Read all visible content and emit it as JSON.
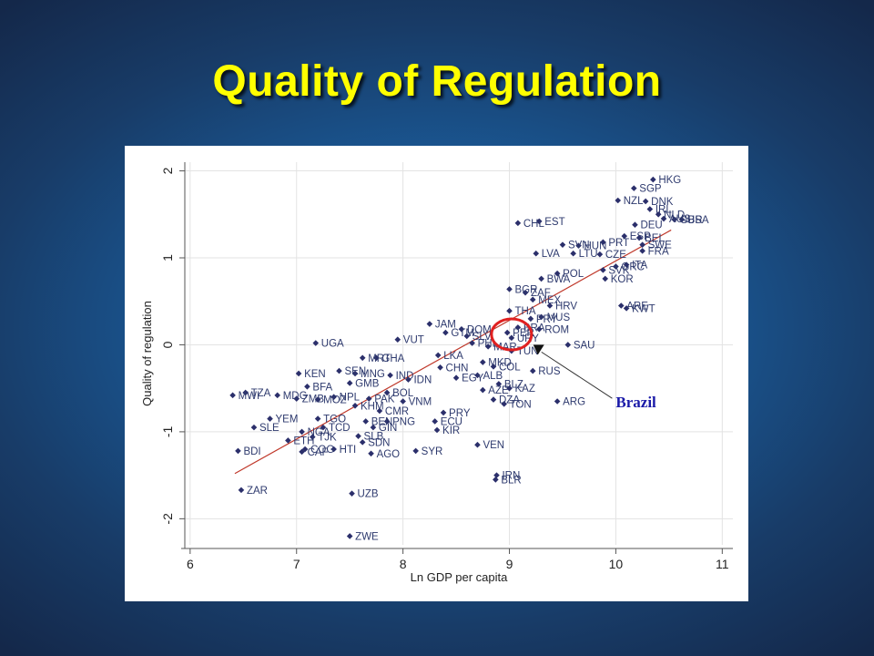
{
  "slide": {
    "title": "Quality of Regulation"
  },
  "chart_data": {
    "type": "scatter",
    "title": "",
    "xlabel": "Ln GDP per capita",
    "ylabel": "Quality of regulation",
    "xlim": [
      5.95,
      11.1
    ],
    "ylim": [
      -2.3,
      2.1
    ],
    "xticks": [
      6,
      7,
      8,
      9,
      10,
      11
    ],
    "yticks": [
      -2,
      -1,
      0,
      1,
      2
    ],
    "grid": true,
    "fit_line": {
      "x": [
        6.42,
        10.52
      ],
      "y": [
        -1.48,
        1.32
      ],
      "color": "#c0392b"
    },
    "point_color": "#2b2f6b",
    "points": [
      {
        "x": 10.35,
        "y": 1.9,
        "label": "HKG"
      },
      {
        "x": 10.17,
        "y": 1.8,
        "label": "SGP"
      },
      {
        "x": 10.02,
        "y": 1.66,
        "label": "NZL"
      },
      {
        "x": 10.28,
        "y": 1.65,
        "label": "DNK"
      },
      {
        "x": 10.32,
        "y": 1.56,
        "label": "IRL"
      },
      {
        "x": 10.4,
        "y": 1.5,
        "label": "NLD"
      },
      {
        "x": 10.55,
        "y": 1.44,
        "label": "GBR"
      },
      {
        "x": 10.62,
        "y": 1.44,
        "label": "USA"
      },
      {
        "x": 10.45,
        "y": 1.45,
        "label": "AUS"
      },
      {
        "x": 9.28,
        "y": 1.42,
        "label": "EST"
      },
      {
        "x": 9.08,
        "y": 1.4,
        "label": "CHL"
      },
      {
        "x": 10.18,
        "y": 1.38,
        "label": "DEU"
      },
      {
        "x": 10.08,
        "y": 1.25,
        "label": "ESP"
      },
      {
        "x": 10.22,
        "y": 1.23,
        "label": "BEL"
      },
      {
        "x": 10.25,
        "y": 1.15,
        "label": "SWE"
      },
      {
        "x": 9.88,
        "y": 1.18,
        "label": "PRT"
      },
      {
        "x": 9.5,
        "y": 1.15,
        "label": "SVN"
      },
      {
        "x": 9.65,
        "y": 1.14,
        "label": "HUN"
      },
      {
        "x": 10.25,
        "y": 1.08,
        "label": "FRA"
      },
      {
        "x": 9.25,
        "y": 1.05,
        "label": "LVA"
      },
      {
        "x": 9.6,
        "y": 1.05,
        "label": "LTU"
      },
      {
        "x": 9.85,
        "y": 1.04,
        "label": "CZE"
      },
      {
        "x": 10.1,
        "y": 0.92,
        "label": "ITA"
      },
      {
        "x": 10.0,
        "y": 0.9,
        "label": "GRC"
      },
      {
        "x": 9.88,
        "y": 0.86,
        "label": "SVK"
      },
      {
        "x": 9.45,
        "y": 0.82,
        "label": "POL"
      },
      {
        "x": 9.3,
        "y": 0.76,
        "label": "BWA"
      },
      {
        "x": 9.9,
        "y": 0.76,
        "label": "KOR"
      },
      {
        "x": 9.0,
        "y": 0.64,
        "label": "BGR"
      },
      {
        "x": 9.15,
        "y": 0.6,
        "label": "ZAF"
      },
      {
        "x": 9.22,
        "y": 0.52,
        "label": "MEX"
      },
      {
        "x": 9.38,
        "y": 0.45,
        "label": "HRV"
      },
      {
        "x": 10.05,
        "y": 0.45,
        "label": "ARE"
      },
      {
        "x": 10.1,
        "y": 0.42,
        "label": "KWT"
      },
      {
        "x": 9.0,
        "y": 0.39,
        "label": "THA"
      },
      {
        "x": 9.3,
        "y": 0.32,
        "label": "MUS"
      },
      {
        "x": 9.2,
        "y": 0.3,
        "label": "PRY"
      },
      {
        "x": 8.25,
        "y": 0.24,
        "label": "JAM"
      },
      {
        "x": 8.55,
        "y": 0.18,
        "label": "DOM"
      },
      {
        "x": 8.4,
        "y": 0.14,
        "label": "GTM"
      },
      {
        "x": 8.6,
        "y": 0.1,
        "label": "SLV"
      },
      {
        "x": 9.08,
        "y": 0.2,
        "label": "BRA"
      },
      {
        "x": 8.98,
        "y": 0.14,
        "label": "PER"
      },
      {
        "x": 9.02,
        "y": 0.08,
        "label": "URY"
      },
      {
        "x": 9.28,
        "y": 0.18,
        "label": "ROM"
      },
      {
        "x": 8.65,
        "y": 0.02,
        "label": "PHL"
      },
      {
        "x": 8.8,
        "y": -0.02,
        "label": "MAR"
      },
      {
        "x": 9.02,
        "y": -0.07,
        "label": "TUN"
      },
      {
        "x": 9.55,
        "y": 0.0,
        "label": "SAU"
      },
      {
        "x": 7.18,
        "y": 0.02,
        "label": "UGA"
      },
      {
        "x": 7.95,
        "y": 0.06,
        "label": "VUT"
      },
      {
        "x": 7.62,
        "y": -0.15,
        "label": "MRT"
      },
      {
        "x": 7.75,
        "y": -0.15,
        "label": "GHA"
      },
      {
        "x": 8.33,
        "y": -0.12,
        "label": "LKA"
      },
      {
        "x": 8.35,
        "y": -0.26,
        "label": "CHN"
      },
      {
        "x": 8.75,
        "y": -0.2,
        "label": "MKD"
      },
      {
        "x": 8.85,
        "y": -0.25,
        "label": "COL"
      },
      {
        "x": 9.22,
        "y": -0.3,
        "label": "RUS"
      },
      {
        "x": 7.02,
        "y": -0.33,
        "label": "KEN"
      },
      {
        "x": 7.4,
        "y": -0.3,
        "label": "SEN"
      },
      {
        "x": 7.55,
        "y": -0.33,
        "label": "MNG"
      },
      {
        "x": 7.1,
        "y": -0.48,
        "label": "BFA"
      },
      {
        "x": 7.5,
        "y": -0.44,
        "label": "GMB"
      },
      {
        "x": 7.88,
        "y": -0.35,
        "label": "IND"
      },
      {
        "x": 8.05,
        "y": -0.4,
        "label": "IDN"
      },
      {
        "x": 8.5,
        "y": -0.38,
        "label": "EGY"
      },
      {
        "x": 8.7,
        "y": -0.35,
        "label": "ALB"
      },
      {
        "x": 8.9,
        "y": -0.45,
        "label": "BLZ"
      },
      {
        "x": 9.0,
        "y": -0.5,
        "label": "KAZ"
      },
      {
        "x": 8.75,
        "y": -0.52,
        "label": "AZE"
      },
      {
        "x": 7.85,
        "y": -0.55,
        "label": "BOL"
      },
      {
        "x": 6.4,
        "y": -0.58,
        "label": "MWI"
      },
      {
        "x": 6.52,
        "y": -0.55,
        "label": "TZA"
      },
      {
        "x": 6.82,
        "y": -0.58,
        "label": "MDG"
      },
      {
        "x": 7.0,
        "y": -0.62,
        "label": "ZMB"
      },
      {
        "x": 7.2,
        "y": -0.63,
        "label": "MOZ"
      },
      {
        "x": 7.35,
        "y": -0.6,
        "label": "NPL"
      },
      {
        "x": 7.68,
        "y": -0.62,
        "label": "PAK"
      },
      {
        "x": 8.0,
        "y": -0.65,
        "label": "VNM"
      },
      {
        "x": 8.85,
        "y": -0.63,
        "label": "DZA"
      },
      {
        "x": 8.95,
        "y": -0.68,
        "label": "TON"
      },
      {
        "x": 9.45,
        "y": -0.65,
        "label": "ARG"
      },
      {
        "x": 7.55,
        "y": -0.7,
        "label": "KHM"
      },
      {
        "x": 7.78,
        "y": -0.76,
        "label": "CMR"
      },
      {
        "x": 8.38,
        "y": -0.78,
        "label": "PRY"
      },
      {
        "x": 7.2,
        "y": -0.85,
        "label": "TGO"
      },
      {
        "x": 6.75,
        "y": -0.85,
        "label": "YEM"
      },
      {
        "x": 7.65,
        "y": -0.88,
        "label": "BEN"
      },
      {
        "x": 7.85,
        "y": -0.88,
        "label": "PNG"
      },
      {
        "x": 8.3,
        "y": -0.88,
        "label": "ECU"
      },
      {
        "x": 7.72,
        "y": -0.95,
        "label": "GIN"
      },
      {
        "x": 6.6,
        "y": -0.95,
        "label": "SLE"
      },
      {
        "x": 8.32,
        "y": -0.98,
        "label": "KIR"
      },
      {
        "x": 7.25,
        "y": -0.95,
        "label": "TCD"
      },
      {
        "x": 7.05,
        "y": -1.0,
        "label": "NGA"
      },
      {
        "x": 7.58,
        "y": -1.05,
        "label": "SLB"
      },
      {
        "x": 7.15,
        "y": -1.06,
        "label": "TJK"
      },
      {
        "x": 6.92,
        "y": -1.1,
        "label": "ETH"
      },
      {
        "x": 7.62,
        "y": -1.12,
        "label": "SDN"
      },
      {
        "x": 8.7,
        "y": -1.15,
        "label": "VEN"
      },
      {
        "x": 7.08,
        "y": -1.2,
        "label": "COG"
      },
      {
        "x": 7.35,
        "y": -1.2,
        "label": "HTI"
      },
      {
        "x": 7.05,
        "y": -1.23,
        "label": "CAF"
      },
      {
        "x": 6.45,
        "y": -1.22,
        "label": "BDI"
      },
      {
        "x": 8.12,
        "y": -1.22,
        "label": "SYR"
      },
      {
        "x": 7.7,
        "y": -1.25,
        "label": "AGO"
      },
      {
        "x": 8.88,
        "y": -1.5,
        "label": "IRN"
      },
      {
        "x": 8.87,
        "y": -1.55,
        "label": "BLR"
      },
      {
        "x": 6.48,
        "y": -1.67,
        "label": "ZAR"
      },
      {
        "x": 7.52,
        "y": -1.71,
        "label": "UZB"
      },
      {
        "x": 7.5,
        "y": -2.2,
        "label": "ZWE"
      }
    ],
    "annotations": [
      {
        "text": "Brazil",
        "x": 10.0,
        "y": -0.72,
        "arrow_to": {
          "x": 9.25,
          "y": -0.02
        },
        "color": "#1a1aa8"
      }
    ],
    "highlight": {
      "label": "Brazil",
      "center": {
        "x": 9.02,
        "y": 0.12
      },
      "color": "#e02020"
    }
  }
}
